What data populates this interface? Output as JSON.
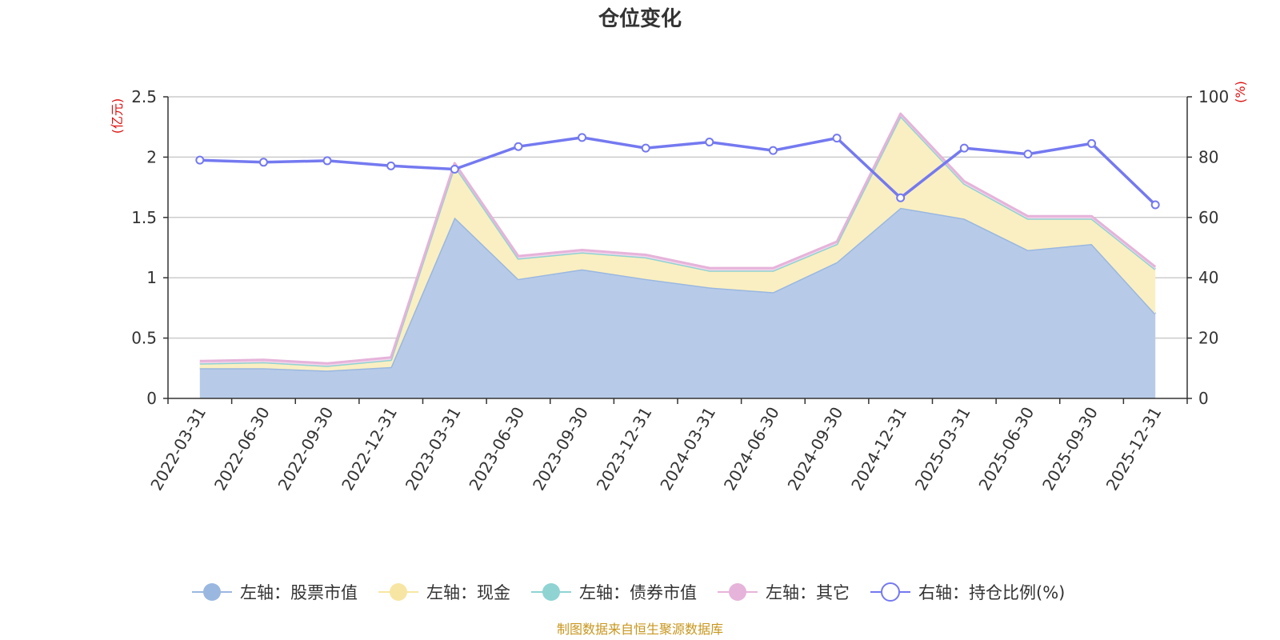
{
  "chart_data": {
    "type": "area",
    "title": "仓位变化",
    "source_text": "制图数据来自恒生聚源数据库",
    "categories": [
      "2022-03-31",
      "2022-06-30",
      "2022-09-30",
      "2022-12-31",
      "2023-03-31",
      "2023-06-30",
      "2023-09-30",
      "2023-12-31",
      "2024-03-31",
      "2024-06-30",
      "2024-09-30",
      "2024-12-31",
      "2025-03-31",
      "2025-06-30",
      "2025-09-30",
      "2025-12-31"
    ],
    "left_axis": {
      "unit": "(亿元)",
      "ylim": [
        0,
        2.5
      ],
      "ticks": [
        "0",
        "0.5",
        "1",
        "1.5",
        "2",
        "2.5"
      ],
      "tick_values": [
        0,
        0.5,
        1,
        1.5,
        2,
        2.5
      ]
    },
    "right_axis": {
      "unit": "(%)",
      "ylim": [
        0,
        100
      ],
      "ticks": [
        "0",
        "20",
        "40",
        "60",
        "80",
        "100"
      ],
      "tick_values": [
        0,
        20,
        40,
        60,
        80,
        100
      ]
    },
    "stacked_series": [
      {
        "name": "左轴：股票市值",
        "color": "#9ab7e0",
        "fill": "#b7cbe9",
        "values": [
          0.25,
          0.25,
          0.23,
          0.26,
          1.5,
          0.99,
          1.07,
          0.99,
          0.92,
          0.88,
          1.13,
          1.58,
          1.49,
          1.23,
          1.28,
          0.7
        ]
      },
      {
        "name": "左轴：现金",
        "color": "#f7e6a3",
        "fill": "#faefc2",
        "values": [
          0.04,
          0.05,
          0.04,
          0.06,
          0.43,
          0.17,
          0.14,
          0.18,
          0.14,
          0.18,
          0.15,
          0.76,
          0.29,
          0.26,
          0.21,
          0.37
        ]
      },
      {
        "name": "左轴：债券市值",
        "color": "#8fd3d3",
        "fill": "#b5e3e3",
        "values": [
          0,
          0,
          0,
          0,
          0,
          0,
          0,
          0,
          0,
          0,
          0,
          0,
          0,
          0,
          0,
          0
        ]
      },
      {
        "name": "左轴：其它",
        "color": "#e6b3da",
        "fill": "#f2d6ec",
        "values": [
          0.02,
          0.02,
          0.02,
          0.02,
          0.02,
          0.02,
          0.02,
          0.02,
          0.02,
          0.02,
          0.02,
          0.02,
          0.02,
          0.02,
          0.02,
          0.02
        ]
      }
    ],
    "line_series": {
      "name": "右轴：持仓比例(%)",
      "color": "#7479f0",
      "axis": "right",
      "values": [
        79.0,
        78.3,
        78.8,
        77.1,
        76.0,
        83.5,
        86.5,
        83.0,
        85.0,
        82.2,
        86.3,
        66.5,
        83.0,
        81.0,
        84.5,
        64.2
      ]
    },
    "grid": true,
    "legend_position": "bottom"
  }
}
